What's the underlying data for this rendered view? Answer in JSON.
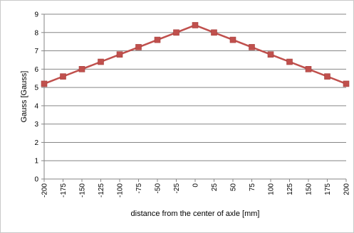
{
  "chart_data": {
    "type": "line",
    "title": "",
    "xlabel": "distance from the center of axle [mm]",
    "ylabel": "Gauss [Gauss]",
    "x": [
      -200,
      -175,
      -150,
      -125,
      -100,
      -75,
      -50,
      -25,
      0,
      25,
      50,
      75,
      100,
      125,
      150,
      175,
      200
    ],
    "series": [
      {
        "values": [
          5.2,
          5.6,
          6.0,
          6.4,
          6.8,
          7.2,
          7.6,
          8.0,
          8.4,
          8.0,
          7.6,
          7.2,
          6.8,
          6.4,
          6.0,
          5.6,
          5.2
        ],
        "color": "#c0504d",
        "marker": "square"
      }
    ],
    "xlim": [
      -200,
      200
    ],
    "ylim": [
      0,
      9
    ],
    "yticks": [
      0,
      1,
      2,
      3,
      4,
      5,
      6,
      7,
      8,
      9
    ],
    "xticks": [
      -200,
      -175,
      -150,
      -125,
      -100,
      -75,
      -50,
      -25,
      0,
      25,
      50,
      75,
      100,
      125,
      150,
      175,
      200
    ],
    "grid": "horizontal",
    "legend": "none",
    "gridColor": "#868686",
    "axisColor": "#868686"
  }
}
